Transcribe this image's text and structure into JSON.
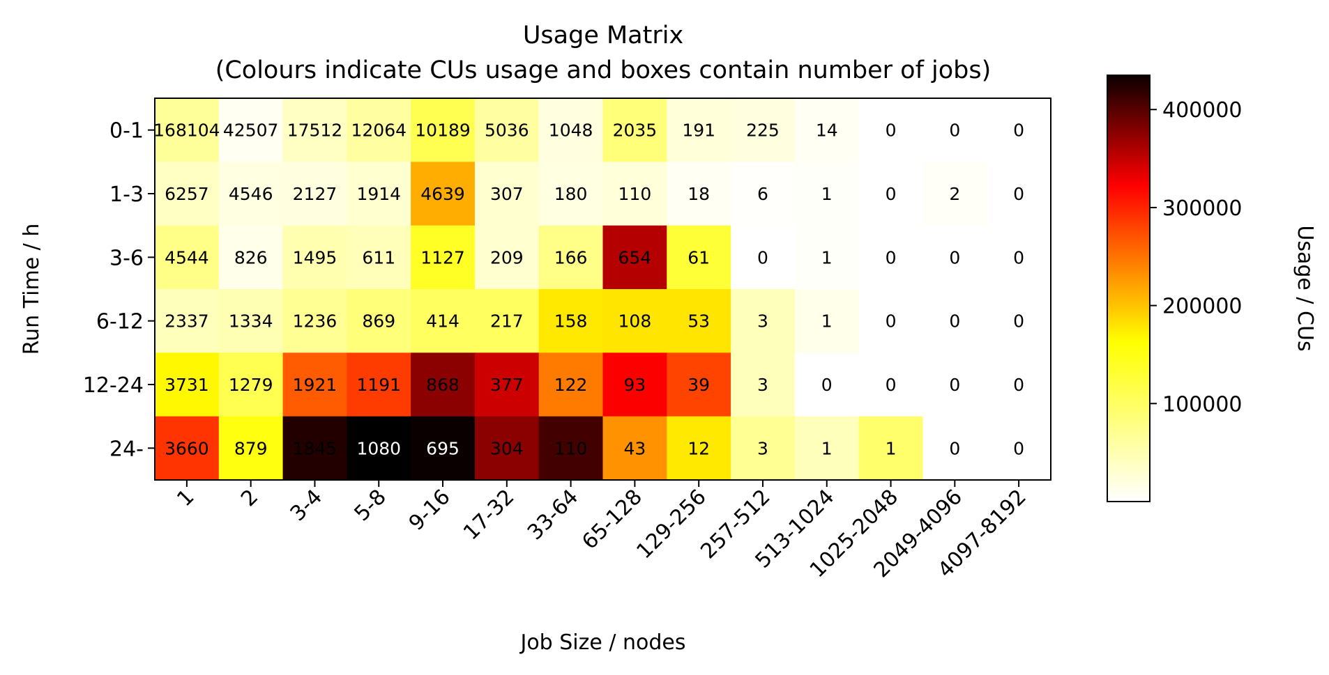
{
  "chart_data": {
    "type": "heatmap",
    "title": "Usage Matrix",
    "subtitle": "(Colours indicate CUs usage and boxes contain number of jobs)",
    "xlabel": "Job Size / nodes",
    "ylabel": "Run Time / h",
    "colorbar_label": "Usage / CUs",
    "colormap": "hot_r",
    "colorbar_range": [
      0,
      435000
    ],
    "colorbar_ticks": [
      "100000",
      "200000",
      "300000",
      "400000"
    ],
    "colorbar_tick_values": [
      100000,
      200000,
      300000,
      400000
    ],
    "x_categories": [
      "1",
      "2",
      "3-4",
      "5-8",
      "9-16",
      "17-32",
      "33-64",
      "65-128",
      "129-256",
      "257-512",
      "513-1024",
      "1025-2048",
      "2049-4096",
      "4097-8192"
    ],
    "y_categories": [
      "0-1",
      "1-3",
      "3-6",
      "6-12",
      "12-24",
      "24-"
    ],
    "job_counts": [
      [
        "168104",
        "42507",
        "17512",
        "12064",
        "10189",
        "5036",
        "1048",
        "2035",
        "191",
        "225",
        "14",
        "0",
        "0",
        "0"
      ],
      [
        "6257",
        "4546",
        "2127",
        "1914",
        "4639",
        "307",
        "180",
        "110",
        "18",
        "6",
        "1",
        "0",
        "2",
        "0"
      ],
      [
        "4544",
        "826",
        "1495",
        "611",
        "1127",
        "209",
        "166",
        "654",
        "61",
        "0",
        "1",
        "0",
        "0",
        "0"
      ],
      [
        "2337",
        "1334",
        "1236",
        "869",
        "414",
        "217",
        "158",
        "108",
        "53",
        "3",
        "1",
        "0",
        "0",
        "0"
      ],
      [
        "3731",
        "1279",
        "1921",
        "1191",
        "868",
        "377",
        "122",
        "93",
        "39",
        "3",
        "0",
        "0",
        "0",
        "0"
      ],
      [
        "3660",
        "879",
        "1845",
        "1080",
        "695",
        "304",
        "110",
        "43",
        "12",
        "3",
        "1",
        "1",
        "0",
        "0"
      ]
    ],
    "usage_cus": [
      [
        38000,
        5000,
        22000,
        35000,
        65000,
        35000,
        12000,
        50000,
        14000,
        12000,
        4000,
        0,
        0,
        0
      ],
      [
        22000,
        11000,
        12000,
        18000,
        148000,
        18000,
        11000,
        14000,
        4000,
        1000,
        2000,
        0,
        3000,
        0
      ],
      [
        45000,
        8000,
        30000,
        26000,
        82000,
        18000,
        45000,
        305000,
        75000,
        0,
        2000,
        0,
        0,
        0
      ],
      [
        25000,
        28000,
        40000,
        50000,
        60000,
        60000,
        110000,
        112000,
        112000,
        25000,
        8000,
        0,
        0,
        0
      ],
      [
        100000,
        65000,
        200000,
        220000,
        330000,
        290000,
        180000,
        260000,
        215000,
        25000,
        0,
        0,
        0,
        0
      ],
      [
        225000,
        90000,
        395000,
        440000,
        410000,
        330000,
        375000,
        165000,
        110000,
        40000,
        25000,
        55000,
        0,
        0
      ]
    ]
  }
}
